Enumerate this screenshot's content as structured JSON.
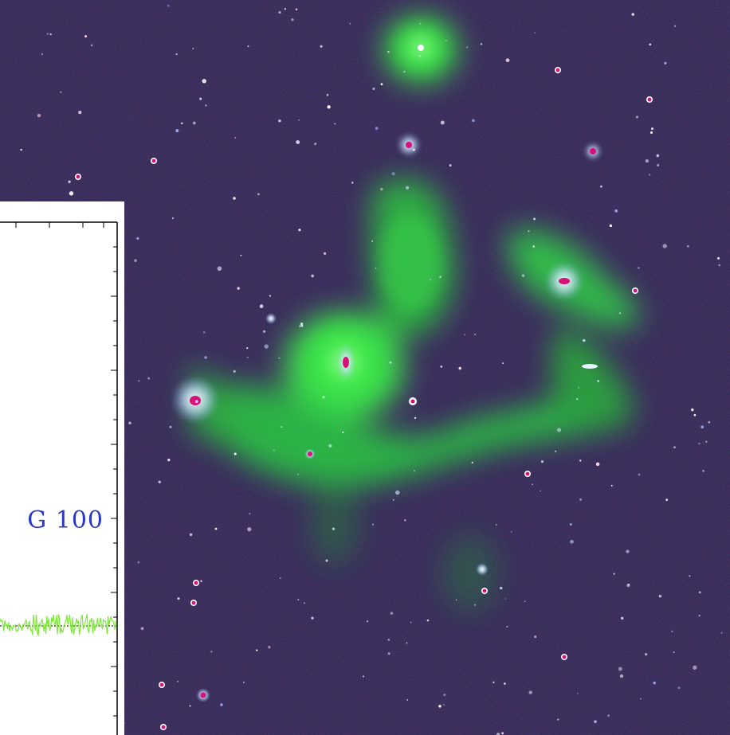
{
  "image": {
    "description_colors": {
      "sky": "#2a2350",
      "emission": "#3cf046",
      "star_core": "#d8107a",
      "star_halo": "#e6f4ff",
      "spectrum_line": "#7ee83a",
      "label": "#2a38c8"
    }
  },
  "inset": {
    "label": "G 100"
  }
}
